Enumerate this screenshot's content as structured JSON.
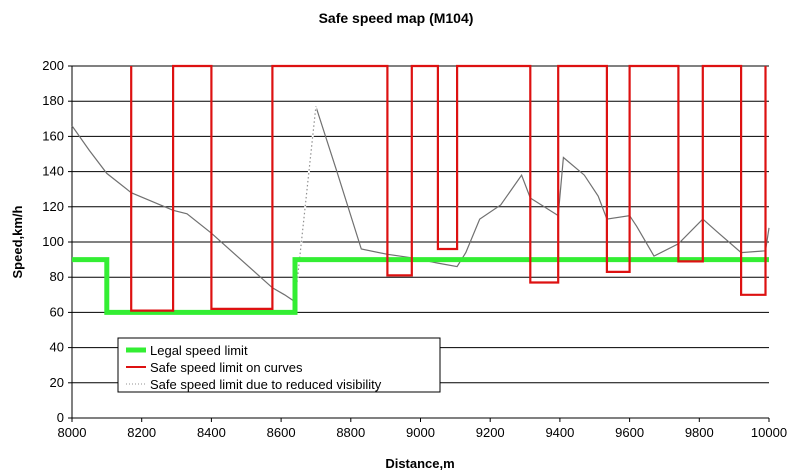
{
  "chart_data": {
    "type": "line",
    "title": "Safe speed map (M104)",
    "xlabel": "Distance,m",
    "ylabel": "Speed,km/h",
    "xlim": [
      8000,
      10000
    ],
    "ylim": [
      0,
      200
    ],
    "xticks": [
      "8000",
      "8200",
      "8400",
      "8600",
      "8800",
      "9000",
      "9200",
      "9400",
      "9600",
      "9800",
      "10000"
    ],
    "yticks": [
      "0",
      "20",
      "40",
      "60",
      "80",
      "100",
      "120",
      "140",
      "160",
      "180",
      "200"
    ],
    "grid": "horizontal",
    "legend_position": "bottom-left",
    "series": [
      {
        "name": "Legal speed limit",
        "color": "#33ee33",
        "style": "solid-thick",
        "x": [
          8000,
          8100,
          8100,
          8640,
          8640,
          10000
        ],
        "y": [
          90,
          90,
          60,
          60,
          90,
          90
        ]
      },
      {
        "name": "Safe speed limit on curves",
        "color": "#dd1111",
        "style": "solid",
        "x": [
          8170,
          8170,
          8290,
          8290,
          8400,
          8400,
          8575,
          8575,
          8905,
          8905,
          8975,
          8975,
          9050,
          9050,
          9105,
          9105,
          9315,
          9315,
          9395,
          9395,
          9535,
          9535,
          9600,
          9600,
          9740,
          9740,
          9810,
          9810,
          9920,
          9920,
          9990,
          9990
        ],
        "y": [
          200,
          61,
          61,
          200,
          200,
          62,
          62,
          200,
          200,
          81,
          81,
          200,
          200,
          96,
          96,
          200,
          200,
          77,
          77,
          200,
          200,
          83,
          83,
          200,
          200,
          89,
          89,
          200,
          200,
          70,
          70,
          200
        ]
      },
      {
        "name": "Safe speed limit due to reduced visibility",
        "color": "#707070",
        "style": "solid-thin",
        "x": [
          8000,
          8050,
          8100,
          8170,
          8290,
          8330,
          8400,
          8575,
          8610,
          8640,
          8700,
          8760,
          8830,
          8905,
          8975,
          9050,
          9105,
          9130,
          9170,
          9230,
          9290,
          9315,
          9395,
          9410,
          9470,
          9510,
          9535,
          9600,
          9620,
          9670,
          9740,
          9810,
          9850,
          9920,
          9990,
          10000
        ],
        "y": [
          166,
          152,
          139,
          128,
          118,
          116,
          105,
          74,
          70,
          66,
          177,
          140,
          96,
          93,
          91,
          88,
          86,
          94,
          113,
          121,
          138,
          125,
          115,
          148,
          138,
          126,
          113,
          115,
          109,
          92,
          99,
          113,
          106,
          94,
          95,
          108
        ]
      }
    ],
    "dotted_segments": [
      {
        "series": "Safe speed limit due to reduced visibility",
        "x": [
          8640,
          8700
        ],
        "y": [
          66,
          177
        ]
      }
    ]
  }
}
